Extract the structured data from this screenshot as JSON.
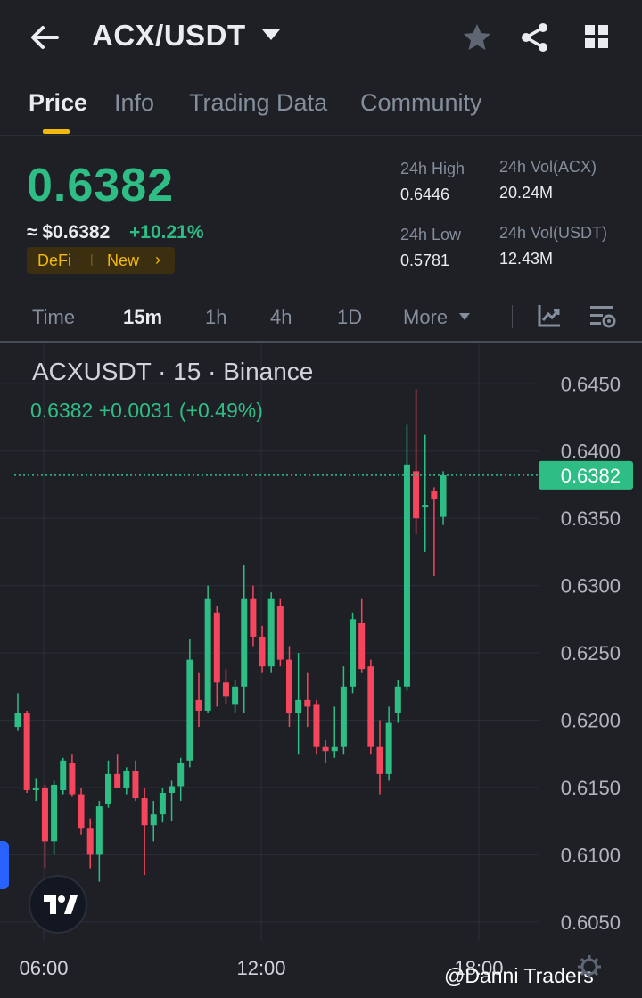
{
  "header": {
    "pair": "ACX/USDT",
    "back_icon": "arrow-left-icon",
    "favorite_icon": "star-icon",
    "share_icon": "share-icon",
    "grid_icon": "grid-icon"
  },
  "tabs": [
    {
      "label": "Price",
      "active": true
    },
    {
      "label": "Info",
      "active": false
    },
    {
      "label": "Trading Data",
      "active": false
    },
    {
      "label": "Community",
      "active": false
    }
  ],
  "price": {
    "last": "0.6382",
    "usd": "≈ $0.6382",
    "change": "+10.21%",
    "tags": {
      "defi": "DeFi",
      "sep": "|",
      "new": "New",
      "arrow": "›"
    }
  },
  "stats": {
    "high_label": "24h High",
    "high_value": "0.6446",
    "low_label": "24h Low",
    "low_value": "0.5781",
    "vol_base_label": "24h Vol(ACX)",
    "vol_base_value": "20.24M",
    "vol_quote_label": "24h Vol(USDT)",
    "vol_quote_value": "12.43M"
  },
  "intervals": {
    "items": [
      "Time",
      "15m",
      "1h",
      "4h",
      "1D",
      "More"
    ],
    "active": "15m"
  },
  "chart_data": {
    "type": "candlestick",
    "title": "ACXUSDT · 15 · Binance",
    "ohlc_line": "0.6382  +0.0031 (+0.49%)",
    "current_price_label": "0.6382",
    "current_price": 0.6382,
    "yticks": [
      "0.6450",
      "0.6400",
      "0.6350",
      "0.6300",
      "0.6250",
      "0.6200",
      "0.6150",
      "0.6100",
      "0.6050"
    ],
    "ylim": [
      0.6036,
      0.648
    ],
    "xticks": [
      "06:00",
      "12:00",
      "18:00"
    ],
    "up_color": "#2ebd85",
    "down_color": "#f6465d",
    "candles": [
      {
        "o": 0.6195,
        "h": 0.622,
        "l": 0.6192,
        "c": 0.6205
      },
      {
        "o": 0.6205,
        "h": 0.6207,
        "l": 0.6146,
        "c": 0.6148
      },
      {
        "o": 0.6148,
        "h": 0.6157,
        "l": 0.614,
        "c": 0.615
      },
      {
        "o": 0.615,
        "h": 0.6152,
        "l": 0.609,
        "c": 0.611
      },
      {
        "o": 0.611,
        "h": 0.6155,
        "l": 0.61,
        "c": 0.6152
      },
      {
        "o": 0.6148,
        "h": 0.6172,
        "l": 0.6145,
        "c": 0.617
      },
      {
        "o": 0.6168,
        "h": 0.6175,
        "l": 0.6143,
        "c": 0.6145
      },
      {
        "o": 0.6145,
        "h": 0.615,
        "l": 0.6115,
        "c": 0.612
      },
      {
        "o": 0.612,
        "h": 0.6127,
        "l": 0.609,
        "c": 0.61
      },
      {
        "o": 0.61,
        "h": 0.614,
        "l": 0.608,
        "c": 0.6136
      },
      {
        "o": 0.6138,
        "h": 0.617,
        "l": 0.6135,
        "c": 0.616
      },
      {
        "o": 0.616,
        "h": 0.6175,
        "l": 0.615,
        "c": 0.615
      },
      {
        "o": 0.615,
        "h": 0.6165,
        "l": 0.6145,
        "c": 0.6162
      },
      {
        "o": 0.6162,
        "h": 0.617,
        "l": 0.614,
        "c": 0.6142
      },
      {
        "o": 0.6142,
        "h": 0.615,
        "l": 0.6085,
        "c": 0.6122
      },
      {
        "o": 0.6122,
        "h": 0.614,
        "l": 0.611,
        "c": 0.613
      },
      {
        "o": 0.613,
        "h": 0.615,
        "l": 0.6124,
        "c": 0.6146
      },
      {
        "o": 0.6146,
        "h": 0.6155,
        "l": 0.6125,
        "c": 0.6151
      },
      {
        "o": 0.6151,
        "h": 0.6172,
        "l": 0.614,
        "c": 0.6168
      },
      {
        "o": 0.617,
        "h": 0.626,
        "l": 0.6165,
        "c": 0.6245
      },
      {
        "o": 0.6215,
        "h": 0.6235,
        "l": 0.6195,
        "c": 0.6207
      },
      {
        "o": 0.6207,
        "h": 0.63,
        "l": 0.6205,
        "c": 0.629
      },
      {
        "o": 0.628,
        "h": 0.6285,
        "l": 0.621,
        "c": 0.6228
      },
      {
        "o": 0.6228,
        "h": 0.6238,
        "l": 0.6212,
        "c": 0.6218
      },
      {
        "o": 0.6212,
        "h": 0.623,
        "l": 0.6205,
        "c": 0.6225
      },
      {
        "o": 0.6225,
        "h": 0.6315,
        "l": 0.6205,
        "c": 0.629
      },
      {
        "o": 0.629,
        "h": 0.63,
        "l": 0.6255,
        "c": 0.6262
      },
      {
        "o": 0.6262,
        "h": 0.627,
        "l": 0.6235,
        "c": 0.624
      },
      {
        "o": 0.624,
        "h": 0.6295,
        "l": 0.6235,
        "c": 0.629
      },
      {
        "o": 0.6285,
        "h": 0.629,
        "l": 0.624,
        "c": 0.6245
      },
      {
        "o": 0.6245,
        "h": 0.6255,
        "l": 0.6195,
        "c": 0.6205
      },
      {
        "o": 0.6205,
        "h": 0.625,
        "l": 0.6175,
        "c": 0.6215
      },
      {
        "o": 0.6215,
        "h": 0.6235,
        "l": 0.6195,
        "c": 0.621
      },
      {
        "o": 0.6212,
        "h": 0.6215,
        "l": 0.6175,
        "c": 0.618
      },
      {
        "o": 0.618,
        "h": 0.6185,
        "l": 0.6168,
        "c": 0.6177
      },
      {
        "o": 0.6177,
        "h": 0.621,
        "l": 0.6172,
        "c": 0.618
      },
      {
        "o": 0.618,
        "h": 0.624,
        "l": 0.6175,
        "c": 0.6225
      },
      {
        "o": 0.6225,
        "h": 0.628,
        "l": 0.622,
        "c": 0.6275
      },
      {
        "o": 0.6272,
        "h": 0.629,
        "l": 0.6235,
        "c": 0.6238
      },
      {
        "o": 0.624,
        "h": 0.6245,
        "l": 0.6175,
        "c": 0.618
      },
      {
        "o": 0.618,
        "h": 0.62,
        "l": 0.6145,
        "c": 0.616
      },
      {
        "o": 0.616,
        "h": 0.621,
        "l": 0.6155,
        "c": 0.6198
      },
      {
        "o": 0.6205,
        "h": 0.623,
        "l": 0.6198,
        "c": 0.6225
      },
      {
        "o": 0.6225,
        "h": 0.642,
        "l": 0.6222,
        "c": 0.639
      },
      {
        "o": 0.6385,
        "h": 0.6446,
        "l": 0.6338,
        "c": 0.635
      },
      {
        "o": 0.6358,
        "h": 0.6412,
        "l": 0.6325,
        "c": 0.636
      },
      {
        "o": 0.637,
        "h": 0.6373,
        "l": 0.6307,
        "c": 0.6364
      },
      {
        "o": 0.6351,
        "h": 0.6385,
        "l": 0.6345,
        "c": 0.6382
      }
    ]
  },
  "watermark": "@Danni Traders",
  "icons": {
    "tradingview": "tradingview-logo",
    "settings": "gear-icon",
    "indicators": "indicator-icon",
    "chart_settings": "chart-settings-icon"
  }
}
